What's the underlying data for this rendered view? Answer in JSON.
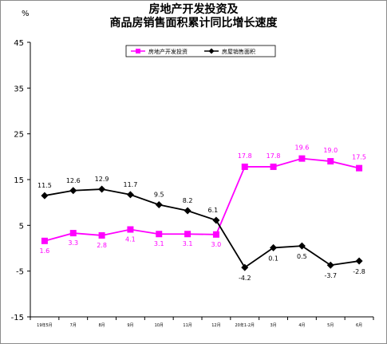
{
  "chart_data": {
    "type": "line",
    "title_line1": "房地产开发投资及",
    "title_line2": "商品房销售面积累计同比增长速度",
    "ylabel": "%",
    "ylim": [
      -15,
      45
    ],
    "yticks": [
      45,
      35,
      25,
      15,
      5,
      -5,
      -15
    ],
    "categories": [
      "19年5月",
      "7月",
      "8月",
      "9月",
      "10月",
      "11月",
      "12月",
      "20年1-2月",
      "3月",
      "4月",
      "5月",
      "6月"
    ],
    "legend_position": "top-right",
    "grid": false,
    "series": [
      {
        "name": "房地产开发投资",
        "color": "#ff00ff",
        "marker": "square",
        "values": [
          1.6,
          3.3,
          2.8,
          4.1,
          3.1,
          3.1,
          3.0,
          17.8,
          17.8,
          19.6,
          19.0,
          17.5
        ],
        "labels": [
          "1.6",
          "3.3",
          "2.8",
          "4.1",
          "3.1",
          "3.1",
          "3.0",
          "17.8",
          "17.8",
          "19.6",
          "19.0",
          "17.5"
        ]
      },
      {
        "name": "房屋销售面积",
        "color": "#000000",
        "marker": "diamond",
        "values": [
          11.5,
          12.6,
          12.9,
          11.7,
          9.5,
          8.2,
          6.1,
          -4.2,
          0.1,
          0.5,
          -3.7,
          -2.8
        ],
        "labels": [
          "11.5",
          "12.6",
          "12.9",
          "11.7",
          "9.5",
          "8.2",
          "6.1",
          "-4.2",
          "0.1",
          "0.5",
          "-3.7",
          "-2.8"
        ]
      }
    ]
  }
}
